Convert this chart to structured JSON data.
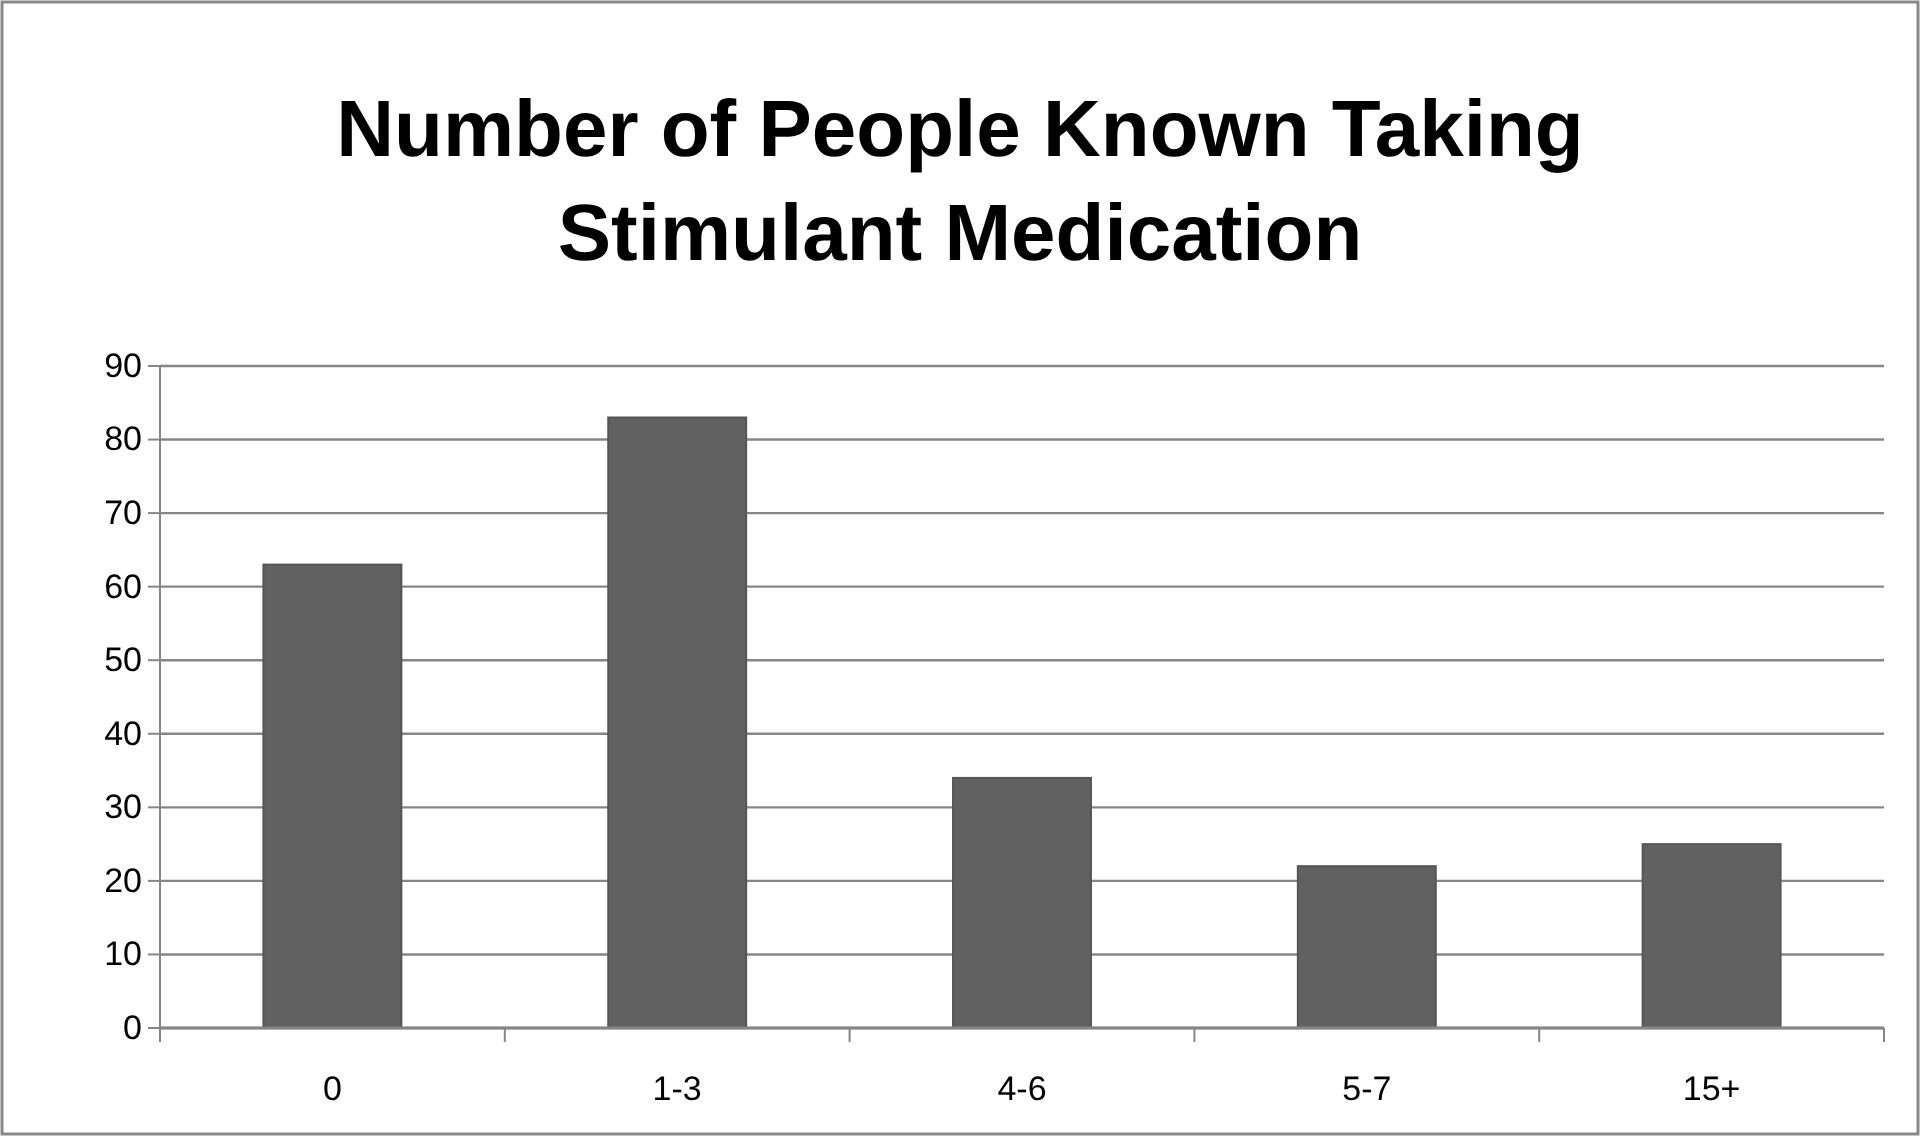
{
  "chart_data": {
    "type": "bar",
    "title": "Number of People Known Taking Stimulant Medication",
    "categories": [
      "0",
      "1-3",
      "4-6",
      "5-7",
      "15+"
    ],
    "values": [
      63,
      83,
      34,
      22,
      25
    ],
    "color": "#616161",
    "ylim": [
      0,
      90
    ],
    "yticks": [
      0,
      10,
      20,
      30,
      40,
      50,
      60,
      70,
      80,
      90
    ],
    "grid": "y"
  }
}
